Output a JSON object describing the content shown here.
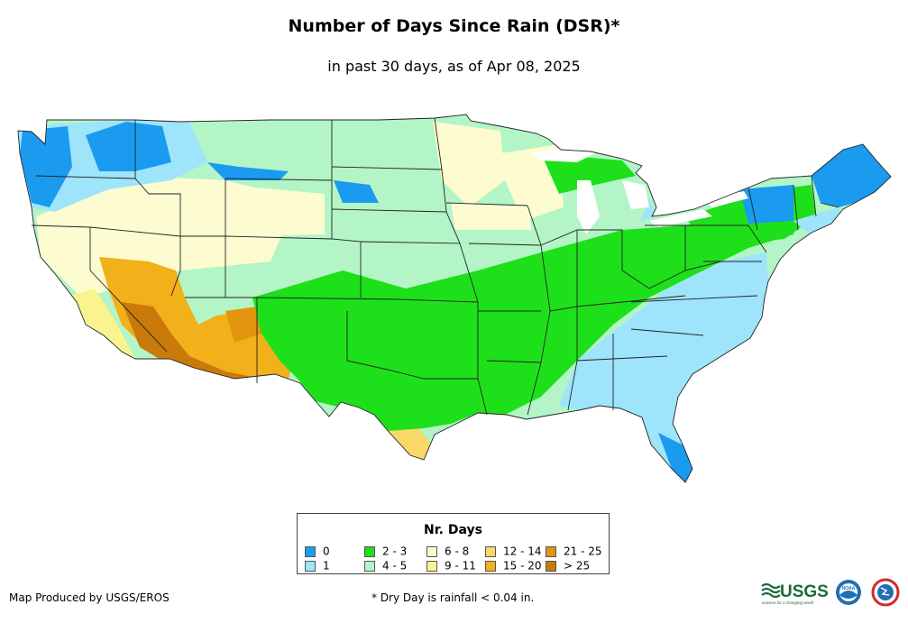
{
  "header": {
    "title": "Number of Days Since Rain (DSR)*",
    "subtitle": "in past 30 days, as of Apr 08, 2025"
  },
  "legend": {
    "title": "Nr. Days",
    "items": [
      {
        "label": "0",
        "color": "#1a9bef"
      },
      {
        "label": "1",
        "color": "#9ee4fb"
      },
      {
        "label": "2 - 3",
        "color": "#1ee01a"
      },
      {
        "label": "4 - 5",
        "color": "#b3f5c6"
      },
      {
        "label": "6 - 8",
        "color": "#fcfcd0"
      },
      {
        "label": "9 - 11",
        "color": "#fbf38f"
      },
      {
        "label": "12 - 14",
        "color": "#f9d768"
      },
      {
        "label": "15 - 20",
        "color": "#f2b01a"
      },
      {
        "label": "21 - 25",
        "color": "#e5940d"
      },
      {
        "label": "> 25",
        "color": "#c97a0a"
      }
    ]
  },
  "footer": {
    "credit": "Map Produced by USGS/EROS",
    "note": "* Dry Day is rainfall < 0.04 in."
  },
  "logos": {
    "usgs_text": "USGS",
    "usgs_tagline": "science for a changing world",
    "noaa_text": "NOAA"
  }
}
